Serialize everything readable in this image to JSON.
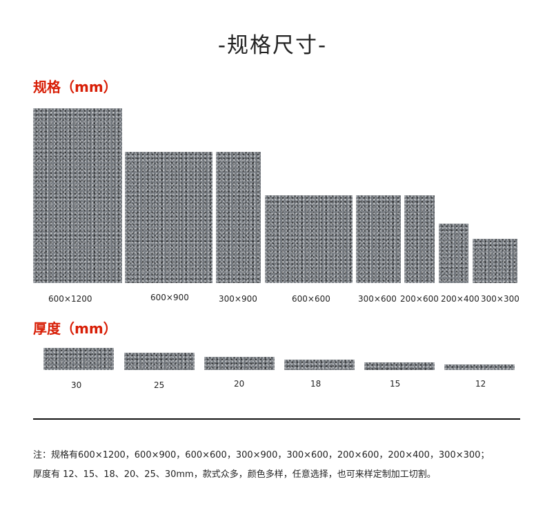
{
  "title": "-规格尺寸-",
  "size_section": {
    "heading": "规格（mm）",
    "tiles": [
      {
        "label": "600×1200"
      },
      {
        "label": "600×900"
      },
      {
        "label": "300×900"
      },
      {
        "label": "600×600"
      },
      {
        "label": "300×600"
      },
      {
        "label": "200×600"
      },
      {
        "label": "200×400"
      },
      {
        "label": "300×300"
      }
    ]
  },
  "thickness_section": {
    "heading": "厚度（mm）",
    "slabs": [
      {
        "label": "30"
      },
      {
        "label": "25"
      },
      {
        "label": "20"
      },
      {
        "label": "18"
      },
      {
        "label": "15"
      },
      {
        "label": "12"
      }
    ]
  },
  "note": {
    "line1": "注：规格有600×1200，600×900，600×600，300×900，300×600，200×600，200×400，300×300；",
    "line2": "厚度有 12、15、18、20、25、30mm，款式众多，颜色多样，任意选择，也可来样定制加工切割。"
  },
  "colors": {
    "heading_red": "#d81e06",
    "stone_gray": "#71767c"
  }
}
